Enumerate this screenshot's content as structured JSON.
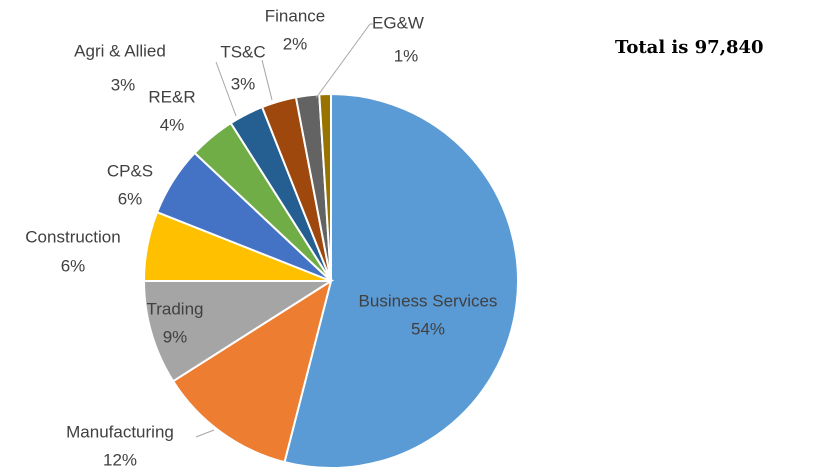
{
  "chart_data": {
    "type": "pie",
    "categories": [
      "Business Services",
      "Manufacturing",
      "Trading",
      "Construction",
      "CP&S",
      "RE&R",
      "Agri & Allied",
      "TS&C",
      "Finance",
      "EG&W"
    ],
    "values": [
      54,
      12,
      9,
      6,
      6,
      4,
      3,
      3,
      2,
      1
    ],
    "value_labels": [
      "54%",
      "12%",
      "9%",
      "6%",
      "6%",
      "4%",
      "3%",
      "3%",
      "2%",
      "1%"
    ],
    "colors": [
      "#5b9bd5",
      "#ed7d31",
      "#a5a5a5",
      "#ffc000",
      "#4472c4",
      "#70ad47",
      "#255e91",
      "#9e480e",
      "#636363",
      "#997300"
    ],
    "annotation": "Total is 97,840"
  }
}
